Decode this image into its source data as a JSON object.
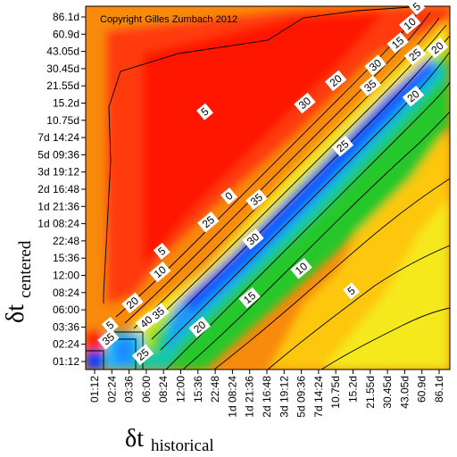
{
  "chart_data": {
    "type": "heatmap",
    "title": "",
    "annotation": "Copyright Gilles Zumbach 2012",
    "xlabel": {
      "main": "δt",
      "sub": "historical"
    },
    "ylabel": {
      "main": "δt",
      "sub": "centered"
    },
    "x_ticks": [
      "01:12",
      "02:24",
      "03:36",
      "06:00",
      "08:24",
      "12:00",
      "15:36",
      "22:48",
      "1d 08:24",
      "1d 21:36",
      "2d 16:48",
      "3d 19:12",
      "5d 09:36",
      "7d 14:24",
      "10.75d",
      "15.2d",
      "21.55d",
      "30.45d",
      "43.05d",
      "60.9d",
      "86.1d"
    ],
    "y_ticks": [
      "01:12",
      "02:24",
      "03:36",
      "06:00",
      "08:24",
      "12:00",
      "15:36",
      "22:48",
      "1d 08:24",
      "1d 21:36",
      "2d 16:48",
      "3d 19:12",
      "5d 09:36",
      "7d 14:24",
      "10.75d",
      "15.2d",
      "21.55d",
      "30.45d",
      "43.05d",
      "60.9d",
      "86.1d"
    ],
    "contour_labels": [
      {
        "value": "5",
        "i": 18.7,
        "j": 20.6
      },
      {
        "value": "10",
        "i": 18.3,
        "j": 19.6
      },
      {
        "value": "15",
        "i": 17.6,
        "j": 18.5
      },
      {
        "value": "20",
        "i": 19.9,
        "j": 18.2
      },
      {
        "value": "25",
        "i": 18.6,
        "j": 17.8
      },
      {
        "value": "30",
        "i": 16.3,
        "j": 17.2
      },
      {
        "value": "35",
        "i": 16.0,
        "j": 16.0
      },
      {
        "value": "20",
        "i": 14.0,
        "j": 16.3
      },
      {
        "value": "30",
        "i": 12.2,
        "j": 15.0
      },
      {
        "value": "25",
        "i": 14.4,
        "j": 12.5
      },
      {
        "value": "20",
        "i": 18.5,
        "j": 15.4
      },
      {
        "value": "5",
        "i": 6.4,
        "j": 14.5
      },
      {
        "value": "0",
        "i": 7.8,
        "j": 9.6
      },
      {
        "value": "35",
        "i": 9.4,
        "j": 9.4
      },
      {
        "value": "25",
        "i": 6.6,
        "j": 8.1
      },
      {
        "value": "30",
        "i": 9.2,
        "j": 7.1
      },
      {
        "value": "5",
        "i": 3.9,
        "j": 6.4
      },
      {
        "value": "10",
        "i": 3.8,
        "j": 5.2
      },
      {
        "value": "10",
        "i": 12.0,
        "j": 5.4
      },
      {
        "value": "15",
        "i": 9.0,
        "j": 3.7
      },
      {
        "value": "5",
        "i": 14.9,
        "j": 4.1
      },
      {
        "value": "20",
        "i": 2.2,
        "j": 3.4
      },
      {
        "value": "35",
        "i": 3.7,
        "j": 2.8
      },
      {
        "value": "40",
        "i": 3.0,
        "j": 2.3
      },
      {
        "value": "20",
        "i": 6.1,
        "j": 2.0
      },
      {
        "value": "5",
        "i": 0.9,
        "j": 2.1
      },
      {
        "value": "35",
        "i": 0.8,
        "j": 1.3
      },
      {
        "value": "25",
        "i": 2.8,
        "j": 0.4
      }
    ],
    "legend": "none",
    "grid": false
  }
}
